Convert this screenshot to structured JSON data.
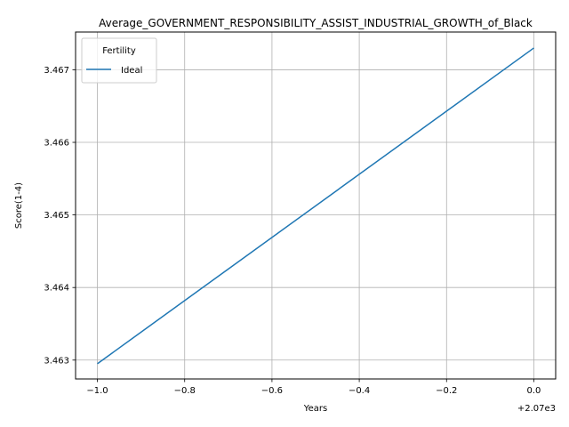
{
  "chart_data": {
    "type": "line",
    "title": "Average_GOVERNMENT_RESPONSIBILITY_ASSIST_INDUSTRIAL_GROWTH_of_Black",
    "xlabel": "Years",
    "ylabel": "Score(1-4)",
    "x_offset_label": "+2.07e3",
    "x_ticks": [
      -1.0,
      -0.8,
      -0.6,
      -0.4,
      -0.2,
      0.0
    ],
    "x_tick_labels": [
      "−1.0",
      "−0.8",
      "−0.6",
      "−0.4",
      "−0.2",
      "0.0"
    ],
    "y_ticks": [
      3.463,
      3.464,
      3.465,
      3.466,
      3.467
    ],
    "y_tick_labels": [
      "3.463",
      "3.464",
      "3.465",
      "3.466",
      "3.467"
    ],
    "xlim": [
      -1.05,
      0.05
    ],
    "ylim": [
      3.46274,
      3.46752
    ],
    "grid": true,
    "legend": {
      "title": "Fertility",
      "placement": "upper left"
    },
    "series": [
      {
        "name": "Ideal",
        "color": "#1f77b4",
        "x": [
          -1.0,
          0.0
        ],
        "y": [
          3.46295,
          3.4673
        ]
      }
    ]
  }
}
